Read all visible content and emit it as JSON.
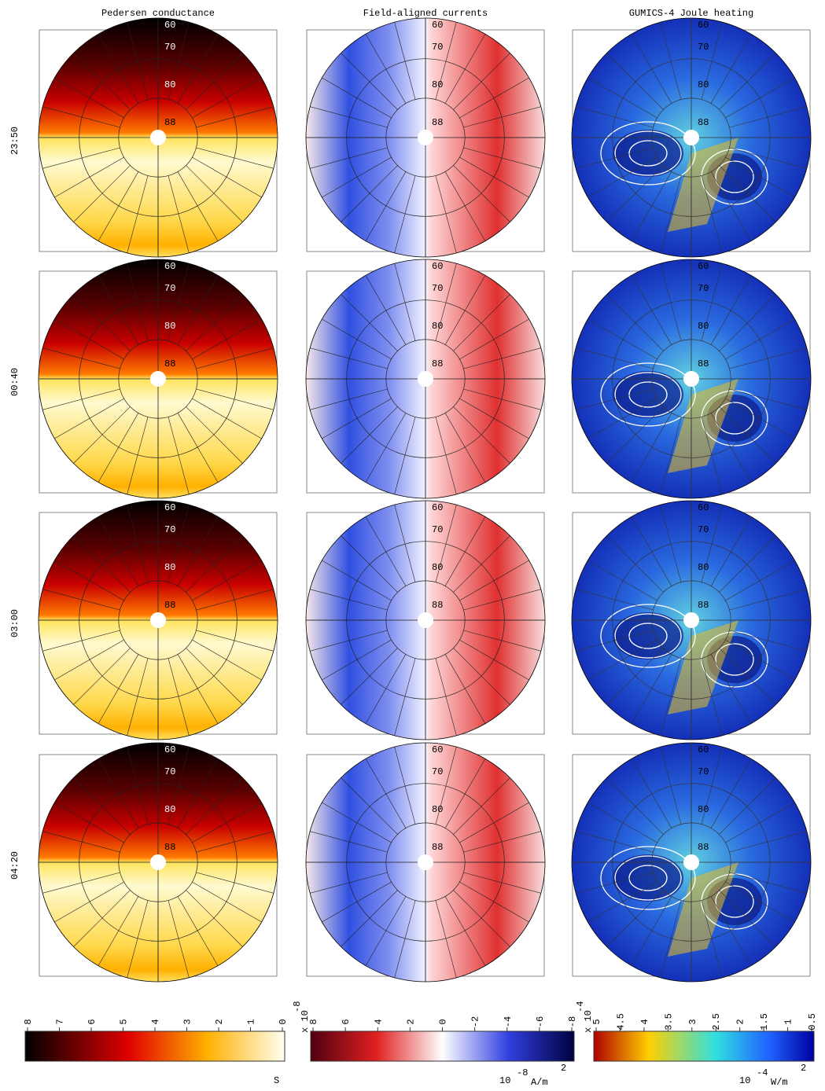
{
  "columns": [
    {
      "title": "Pedersen conductance",
      "colorbar": {
        "ticks": [
          8,
          7,
          6,
          5,
          4,
          3,
          2,
          1,
          0
        ],
        "unit": [
          "S"
        ]
      }
    },
    {
      "title": "Field-aligned currents",
      "colorbar": {
        "ticks": [
          8,
          6,
          4,
          2,
          0,
          -2,
          -4,
          -6,
          -8
        ],
        "multiplier": [
          "x 10",
          "-8"
        ],
        "unit": [
          "10",
          "-8",
          "A/m",
          "2"
        ]
      }
    },
    {
      "title": "GUMICS-4 Joule heating",
      "colorbar": {
        "ticks": [
          5,
          4.5,
          4,
          3.5,
          3,
          2.5,
          2,
          1.5,
          1,
          0.5
        ],
        "multiplier": [
          "x 10",
          "-4"
        ],
        "unit": [
          "10",
          "-4",
          "W/m",
          "2"
        ]
      }
    }
  ],
  "rows": [
    "23:50",
    "00:40",
    "03:00",
    "04:20"
  ],
  "lat_labels": [
    60,
    70,
    80,
    88
  ]
}
